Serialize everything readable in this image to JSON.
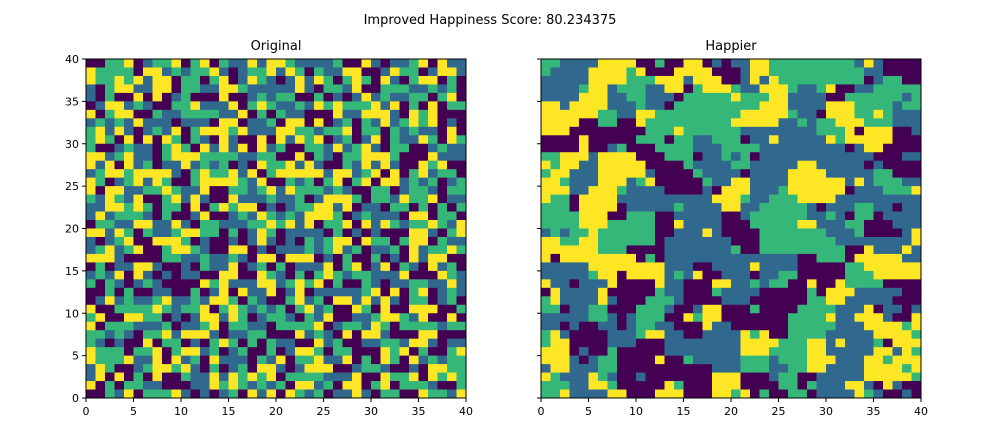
{
  "figure": {
    "suptitle": "Improved Happiness Score: 80.234375"
  },
  "palette": [
    "#440154",
    "#31688e",
    "#35b779",
    "#fde725"
  ],
  "chart_data": [
    {
      "type": "heatmap",
      "title": "Original",
      "xlim": [
        0,
        40
      ],
      "ylim": [
        0,
        40
      ],
      "grid_size": 40,
      "colormap": "viridis",
      "categories": 4,
      "xticks": [
        "0",
        "5",
        "10",
        "15",
        "20",
        "25",
        "30",
        "35",
        "40"
      ],
      "yticks": [
        "0",
        "5",
        "10",
        "15",
        "20",
        "25",
        "30",
        "35",
        "40"
      ],
      "values": [],
      "pattern": "random"
    },
    {
      "type": "heatmap",
      "title": "Happier",
      "xlim": [
        0,
        40
      ],
      "ylim": [
        0,
        40
      ],
      "grid_size": 40,
      "colormap": "viridis",
      "categories": 4,
      "xticks": [
        "0",
        "5",
        "10",
        "15",
        "20",
        "25",
        "30",
        "35",
        "40"
      ],
      "yticks": [],
      "values": [],
      "pattern": "clustered"
    }
  ]
}
